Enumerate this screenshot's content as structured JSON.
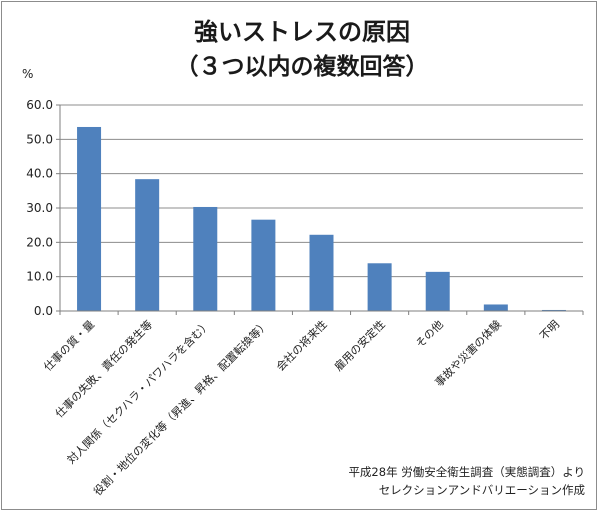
{
  "chart_data": {
    "type": "bar",
    "title": "強いストレスの原因",
    "subtitle": "（３つ以内の複数回答）",
    "ylabel": "%",
    "xlabel": "",
    "ylim": [
      0,
      60
    ],
    "ytick_step": 10,
    "ytick_labels": [
      "0.0",
      "10.0",
      "20.0",
      "30.0",
      "40.0",
      "50.0",
      "60.0"
    ],
    "grid": true,
    "legend": "none",
    "bar_color": "#4f81bd",
    "categories": [
      "仕事の質・量",
      "仕事の失敗、責任の発生等",
      "対人関係（セクハラ・パワハラを含む）",
      "役割・地位の変化等（昇進、昇格、配置転換等）",
      "会社の将来性",
      "雇用の安定性",
      "その他",
      "事故や災害の体験",
      "不明"
    ],
    "values": [
      53.6,
      38.4,
      30.3,
      26.6,
      22.2,
      13.9,
      11.4,
      1.9,
      0.3
    ]
  },
  "source": {
    "line1": "平成28年 労働安全衛生調査（実態調査）より",
    "line2": "セレクションアンドバリエーション作成"
  }
}
